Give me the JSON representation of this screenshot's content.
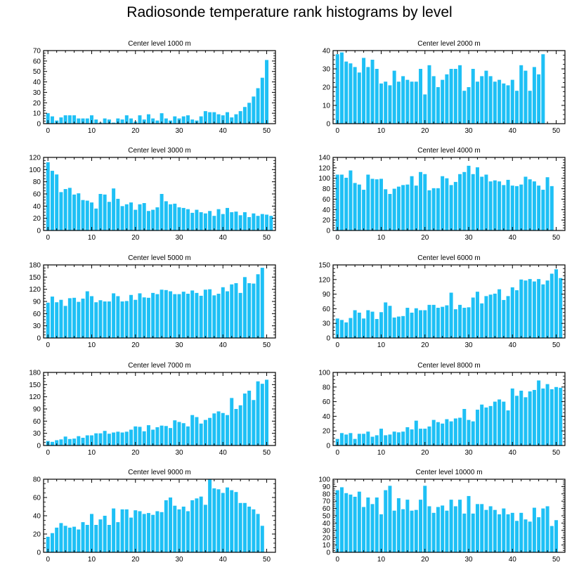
{
  "figure": {
    "title": "Radiosonde temperature rank histograms by level",
    "bar_color": "#1ec0f5",
    "axis_color": "#000000"
  },
  "chart_data": [
    {
      "type": "bar",
      "title": "Center level 1000 m",
      "xlabel": "",
      "ylabel": "",
      "xlim": [
        -1,
        52
      ],
      "ylim": [
        0,
        70
      ],
      "xticks": [
        0,
        10,
        20,
        30,
        40,
        50
      ],
      "yticks": [
        0,
        10,
        20,
        30,
        40,
        50,
        60,
        70
      ],
      "x": [
        0,
        1,
        2,
        3,
        4,
        5,
        6,
        7,
        8,
        9,
        10,
        11,
        12,
        13,
        14,
        15,
        16,
        17,
        18,
        19,
        20,
        21,
        22,
        23,
        24,
        25,
        26,
        27,
        28,
        29,
        30,
        31,
        32,
        33,
        34,
        35,
        36,
        37,
        38,
        39,
        40,
        41,
        42,
        43,
        44,
        45,
        46,
        47,
        48,
        49,
        50,
        51
      ],
      "values": [
        10,
        7,
        3,
        6,
        8,
        8,
        8,
        5,
        5,
        5,
        8,
        4,
        1,
        5,
        4,
        1,
        5,
        4,
        8,
        5,
        2,
        8,
        4,
        9,
        5,
        3,
        10,
        5,
        3,
        7,
        5,
        7,
        8,
        4,
        3,
        7,
        12,
        11,
        11,
        9,
        8,
        11,
        6,
        9,
        12,
        16,
        20,
        26,
        34,
        44,
        61,
        0
      ]
    },
    {
      "type": "bar",
      "title": "Center level 2000 m",
      "xlabel": "",
      "ylabel": "",
      "xlim": [
        -1,
        52
      ],
      "ylim": [
        0,
        40
      ],
      "xticks": [
        0,
        10,
        20,
        30,
        40,
        50
      ],
      "yticks": [
        0,
        10,
        20,
        30,
        40
      ],
      "x": [
        0,
        1,
        2,
        3,
        4,
        5,
        6,
        7,
        8,
        9,
        10,
        11,
        12,
        13,
        14,
        15,
        16,
        17,
        18,
        19,
        20,
        21,
        22,
        23,
        24,
        25,
        26,
        27,
        28,
        29,
        30,
        31,
        32,
        33,
        34,
        35,
        36,
        37,
        38,
        39,
        40,
        41,
        42,
        43,
        44,
        45,
        46,
        47,
        48,
        49,
        50,
        51
      ],
      "values": [
        38,
        39,
        34,
        33,
        31,
        28,
        36,
        31,
        35,
        30,
        22,
        23,
        21,
        29,
        23,
        26,
        24,
        23,
        23,
        30,
        16,
        32,
        26,
        20,
        24,
        27,
        30,
        30,
        32,
        18,
        20,
        30,
        23,
        26,
        29,
        26,
        23,
        24,
        22,
        21,
        24,
        18,
        32,
        29,
        18,
        31,
        27,
        38,
        0,
        0,
        0,
        0
      ]
    },
    {
      "type": "bar",
      "title": "Center level 3000 m",
      "xlabel": "",
      "ylabel": "",
      "xlim": [
        -1,
        52
      ],
      "ylim": [
        0,
        120
      ],
      "xticks": [
        0,
        10,
        20,
        30,
        40,
        50
      ],
      "yticks": [
        0,
        20,
        40,
        60,
        80,
        100,
        120
      ],
      "x": [
        0,
        1,
        2,
        3,
        4,
        5,
        6,
        7,
        8,
        9,
        10,
        11,
        12,
        13,
        14,
        15,
        16,
        17,
        18,
        19,
        20,
        21,
        22,
        23,
        24,
        25,
        26,
        27,
        28,
        29,
        30,
        31,
        32,
        33,
        34,
        35,
        36,
        37,
        38,
        39,
        40,
        41,
        42,
        43,
        44,
        45,
        46,
        47,
        48,
        49,
        50,
        51
      ],
      "values": [
        112,
        98,
        92,
        63,
        68,
        70,
        59,
        61,
        50,
        49,
        46,
        36,
        60,
        59,
        47,
        69,
        52,
        40,
        43,
        46,
        34,
        43,
        45,
        32,
        34,
        38,
        60,
        48,
        43,
        44,
        38,
        37,
        35,
        29,
        34,
        30,
        28,
        32,
        24,
        35,
        27,
        37,
        30,
        31,
        25,
        30,
        22,
        28,
        24,
        27,
        26,
        24
      ]
    },
    {
      "type": "bar",
      "title": "Center level 4000 m",
      "xlabel": "",
      "ylabel": "",
      "xlim": [
        -1,
        52
      ],
      "ylim": [
        0,
        140
      ],
      "xticks": [
        0,
        10,
        20,
        30,
        40,
        50
      ],
      "yticks": [
        0,
        20,
        40,
        60,
        80,
        100,
        120,
        140
      ],
      "x": [
        0,
        1,
        2,
        3,
        4,
        5,
        6,
        7,
        8,
        9,
        10,
        11,
        12,
        13,
        14,
        15,
        16,
        17,
        18,
        19,
        20,
        21,
        22,
        23,
        24,
        25,
        26,
        27,
        28,
        29,
        30,
        31,
        32,
        33,
        34,
        35,
        36,
        37,
        38,
        39,
        40,
        41,
        42,
        43,
        44,
        45,
        46,
        47,
        48,
        49,
        50,
        51
      ],
      "values": [
        107,
        107,
        101,
        115,
        91,
        88,
        78,
        107,
        99,
        98,
        99,
        79,
        70,
        80,
        84,
        87,
        88,
        104,
        86,
        112,
        108,
        77,
        81,
        81,
        104,
        100,
        87,
        93,
        108,
        112,
        124,
        108,
        121,
        103,
        107,
        94,
        96,
        94,
        87,
        97,
        86,
        85,
        88,
        103,
        98,
        94,
        86,
        78,
        102,
        85,
        0,
        0
      ]
    },
    {
      "type": "bar",
      "title": "Center level 5000 m",
      "xlabel": "",
      "ylabel": "",
      "xlim": [
        -1,
        52
      ],
      "ylim": [
        0,
        180
      ],
      "xticks": [
        0,
        10,
        20,
        30,
        40,
        50
      ],
      "yticks": [
        0,
        30,
        60,
        90,
        120,
        150,
        180
      ],
      "x": [
        0,
        1,
        2,
        3,
        4,
        5,
        6,
        7,
        8,
        9,
        10,
        11,
        12,
        13,
        14,
        15,
        16,
        17,
        18,
        19,
        20,
        21,
        22,
        23,
        24,
        25,
        26,
        27,
        28,
        29,
        30,
        31,
        32,
        33,
        34,
        35,
        36,
        37,
        38,
        39,
        40,
        41,
        42,
        43,
        44,
        45,
        46,
        47,
        48,
        49,
        50,
        51
      ],
      "values": [
        87,
        102,
        88,
        94,
        79,
        98,
        99,
        89,
        97,
        115,
        103,
        88,
        93,
        90,
        90,
        110,
        103,
        90,
        91,
        106,
        94,
        110,
        100,
        99,
        111,
        108,
        119,
        118,
        115,
        108,
        108,
        114,
        109,
        117,
        111,
        104,
        119,
        120,
        105,
        109,
        125,
        115,
        132,
        135,
        111,
        150,
        135,
        134,
        157,
        173,
        0,
        0
      ]
    },
    {
      "type": "bar",
      "title": "Center level 6000 m",
      "xlabel": "",
      "ylabel": "",
      "xlim": [
        -1,
        52
      ],
      "ylim": [
        0,
        150
      ],
      "xticks": [
        0,
        10,
        20,
        30,
        40,
        50
      ],
      "yticks": [
        0,
        30,
        60,
        90,
        120,
        150
      ],
      "x": [
        0,
        1,
        2,
        3,
        4,
        5,
        6,
        7,
        8,
        9,
        10,
        11,
        12,
        13,
        14,
        15,
        16,
        17,
        18,
        19,
        20,
        21,
        22,
        23,
        24,
        25,
        26,
        27,
        28,
        29,
        30,
        31,
        32,
        33,
        34,
        35,
        36,
        37,
        38,
        39,
        40,
        41,
        42,
        43,
        44,
        45,
        46,
        47,
        48,
        49,
        50,
        51
      ],
      "values": [
        40,
        37,
        32,
        41,
        57,
        52,
        40,
        57,
        54,
        39,
        53,
        73,
        66,
        42,
        44,
        45,
        62,
        52,
        61,
        57,
        57,
        68,
        68,
        62,
        64,
        67,
        93,
        59,
        68,
        62,
        63,
        83,
        95,
        71,
        86,
        89,
        91,
        100,
        78,
        86,
        104,
        98,
        120,
        118,
        121,
        116,
        121,
        110,
        118,
        132,
        141,
        123
      ]
    },
    {
      "type": "bar",
      "title": "Center level 7000 m",
      "xlabel": "",
      "ylabel": "",
      "xlim": [
        -1,
        52
      ],
      "ylim": [
        0,
        180
      ],
      "xticks": [
        0,
        10,
        20,
        30,
        40,
        50
      ],
      "yticks": [
        0,
        30,
        60,
        90,
        120,
        150,
        180
      ],
      "x": [
        0,
        1,
        2,
        3,
        4,
        5,
        6,
        7,
        8,
        9,
        10,
        11,
        12,
        13,
        14,
        15,
        16,
        17,
        18,
        19,
        20,
        21,
        22,
        23,
        24,
        25,
        26,
        27,
        28,
        29,
        30,
        31,
        32,
        33,
        34,
        35,
        36,
        37,
        38,
        39,
        40,
        41,
        42,
        43,
        44,
        45,
        46,
        47,
        48,
        49,
        50,
        51
      ],
      "values": [
        11,
        9,
        13,
        15,
        22,
        16,
        17,
        23,
        19,
        25,
        25,
        30,
        30,
        36,
        29,
        32,
        34,
        32,
        34,
        39,
        47,
        46,
        35,
        50,
        39,
        45,
        49,
        48,
        43,
        62,
        58,
        55,
        47,
        75,
        70,
        54,
        63,
        68,
        79,
        84,
        80,
        75,
        117,
        90,
        99,
        128,
        135,
        112,
        158,
        152,
        162,
        0
      ]
    },
    {
      "type": "bar",
      "title": "Center level 8000 m",
      "xlabel": "",
      "ylabel": "",
      "xlim": [
        -1,
        52
      ],
      "ylim": [
        0,
        100
      ],
      "xticks": [
        0,
        10,
        20,
        30,
        40,
        50
      ],
      "yticks": [
        0,
        20,
        40,
        60,
        80,
        100
      ],
      "x": [
        0,
        1,
        2,
        3,
        4,
        5,
        6,
        7,
        8,
        9,
        10,
        11,
        12,
        13,
        14,
        15,
        16,
        17,
        18,
        19,
        20,
        21,
        22,
        23,
        24,
        25,
        26,
        27,
        28,
        29,
        30,
        31,
        32,
        33,
        34,
        35,
        36,
        37,
        38,
        39,
        40,
        41,
        42,
        43,
        44,
        45,
        46,
        47,
        48,
        49,
        50,
        51
      ],
      "values": [
        9,
        17,
        15,
        17,
        9,
        16,
        16,
        19,
        12,
        14,
        23,
        14,
        15,
        19,
        18,
        19,
        25,
        22,
        34,
        23,
        23,
        26,
        35,
        32,
        30,
        36,
        33,
        37,
        38,
        50,
        35,
        33,
        49,
        56,
        52,
        54,
        60,
        63,
        60,
        48,
        78,
        68,
        75,
        66,
        74,
        76,
        89,
        78,
        84,
        77,
        80,
        79
      ]
    },
    {
      "type": "bar",
      "title": "Center level 9000 m",
      "xlabel": "",
      "ylabel": "",
      "xlim": [
        -1,
        52
      ],
      "ylim": [
        0,
        80
      ],
      "xticks": [
        0,
        10,
        20,
        30,
        40,
        50
      ],
      "yticks": [
        0,
        20,
        40,
        60,
        80
      ],
      "x": [
        0,
        1,
        2,
        3,
        4,
        5,
        6,
        7,
        8,
        9,
        10,
        11,
        12,
        13,
        14,
        15,
        16,
        17,
        18,
        19,
        20,
        21,
        22,
        23,
        24,
        25,
        26,
        27,
        28,
        29,
        30,
        31,
        32,
        33,
        34,
        35,
        36,
        37,
        38,
        39,
        40,
        41,
        42,
        43,
        44,
        45,
        46,
        47,
        48,
        49,
        50,
        51
      ],
      "values": [
        17,
        21,
        27,
        32,
        29,
        27,
        28,
        25,
        33,
        30,
        42,
        30,
        36,
        40,
        30,
        48,
        33,
        47,
        47,
        38,
        46,
        45,
        42,
        43,
        41,
        45,
        44,
        57,
        60,
        51,
        47,
        50,
        45,
        57,
        59,
        61,
        52,
        80,
        70,
        69,
        65,
        71,
        68,
        66,
        54,
        54,
        50,
        47,
        42,
        29,
        0,
        0
      ]
    },
    {
      "type": "bar",
      "title": "Center level 10000 m",
      "xlabel": "",
      "ylabel": "",
      "xlim": [
        -1,
        52
      ],
      "ylim": [
        0,
        100
      ],
      "xticks": [
        0,
        10,
        20,
        30,
        40,
        50
      ],
      "yticks": [
        0,
        10,
        20,
        30,
        40,
        50,
        60,
        70,
        80,
        90,
        100
      ],
      "x": [
        0,
        1,
        2,
        3,
        4,
        5,
        6,
        7,
        8,
        9,
        10,
        11,
        12,
        13,
        14,
        15,
        16,
        17,
        18,
        19,
        20,
        21,
        22,
        23,
        24,
        25,
        26,
        27,
        28,
        29,
        30,
        31,
        32,
        33,
        34,
        35,
        36,
        37,
        38,
        39,
        40,
        41,
        42,
        43,
        44,
        45,
        46,
        47,
        48,
        49,
        50,
        51
      ],
      "values": [
        85,
        89,
        81,
        79,
        76,
        83,
        62,
        75,
        66,
        75,
        52,
        85,
        91,
        57,
        74,
        59,
        72,
        57,
        58,
        72,
        91,
        63,
        54,
        62,
        64,
        57,
        72,
        63,
        72,
        53,
        77,
        53,
        66,
        66,
        58,
        63,
        58,
        52,
        60,
        52,
        54,
        43,
        54,
        45,
        42,
        61,
        48,
        60,
        63,
        36,
        44,
        0
      ]
    }
  ]
}
